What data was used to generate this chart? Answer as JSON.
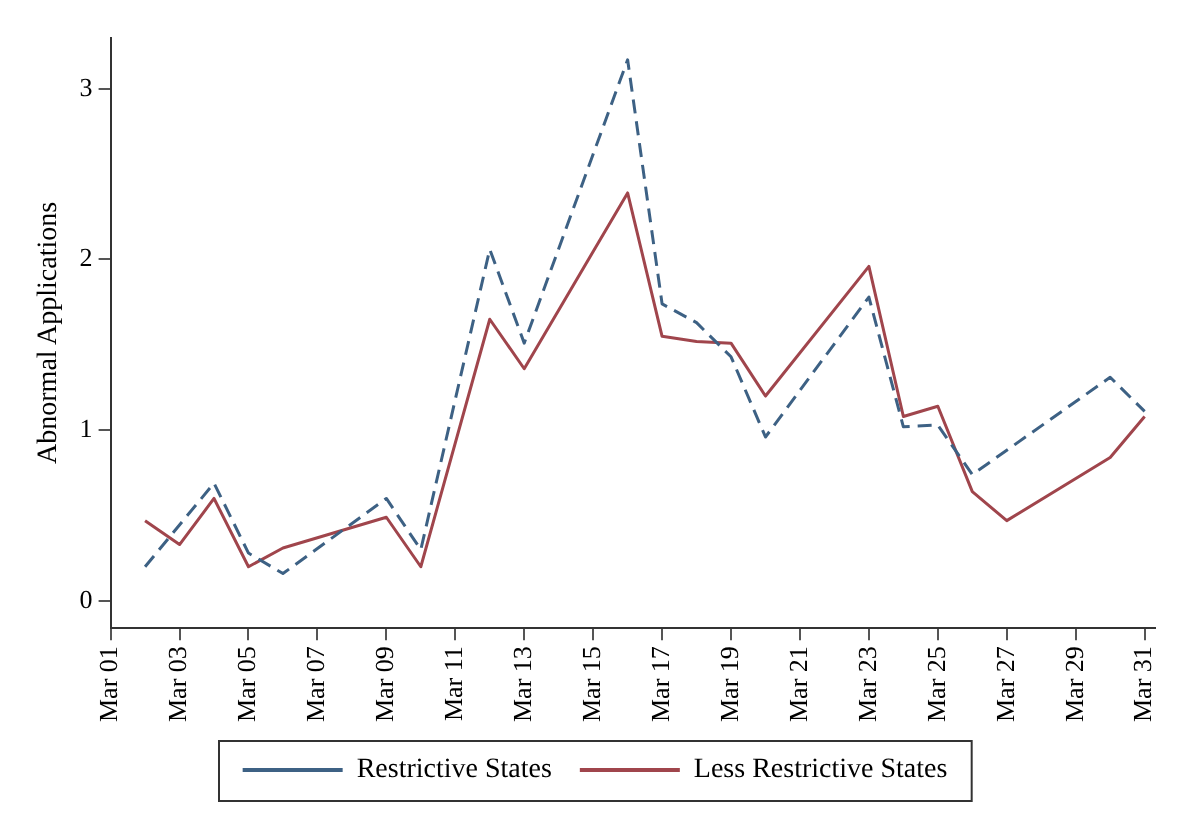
{
  "chart_data": {
    "type": "line",
    "ylabel": "Abnormal Applications",
    "xlim": [
      "--03-01",
      "--03-31T07:00"
    ],
    "xticks": [
      {
        "value": "--03-01",
        "label": "Mar 01"
      },
      {
        "value": "--03-03",
        "label": "Mar 03"
      },
      {
        "value": "--03-05",
        "label": "Mar 05"
      },
      {
        "value": "--03-07",
        "label": "Mar 07"
      },
      {
        "value": "--03-09",
        "label": "Mar 09"
      },
      {
        "value": "--03-11",
        "label": "Mar 11"
      },
      {
        "value": "--03-13",
        "label": "Mar 13"
      },
      {
        "value": "--03-15",
        "label": "Mar 15"
      },
      {
        "value": "--03-17",
        "label": "Mar 17"
      },
      {
        "value": "--03-19",
        "label": "Mar 19"
      },
      {
        "value": "--03-21",
        "label": "Mar 21"
      },
      {
        "value": "--03-23",
        "label": "Mar 23"
      },
      {
        "value": "--03-25",
        "label": "Mar 25"
      },
      {
        "value": "--03-27",
        "label": "Mar 27"
      },
      {
        "value": "--03-29",
        "label": "Mar 29"
      },
      {
        "value": "--03-31",
        "label": "Mar 31"
      }
    ],
    "ylim": [
      -0.16,
      3.3
    ],
    "yticks": [
      0,
      1,
      2,
      3
    ],
    "grid": false,
    "legend": "bottom",
    "marker": "none",
    "series": [
      {
        "name": "Restrictive States",
        "color": "#3d6184",
        "line_style": "dashed",
        "x": [
          "--03-02",
          "--03-04",
          "--03-05",
          "--03-06",
          "--03-09",
          "--03-10",
          "--03-12",
          "--03-13",
          "--03-16",
          "--03-17",
          "--03-18",
          "--03-19",
          "--03-20",
          "--03-23",
          "--03-24",
          "--03-25",
          "--03-26",
          "--03-30",
          "--03-31"
        ],
        "values": [
          0.2,
          0.69,
          0.28,
          0.16,
          0.6,
          0.3,
          2.06,
          1.51,
          3.17,
          1.74,
          1.63,
          1.43,
          0.96,
          1.78,
          1.02,
          1.03,
          0.74,
          1.31,
          1.11
        ]
      },
      {
        "name": "Less Restrictive States",
        "color": "#a0454c",
        "line_style": "solid",
        "x": [
          "--03-02",
          "--03-03",
          "--03-04",
          "--03-05",
          "--03-06",
          "--03-09",
          "--03-10",
          "--03-12",
          "--03-13",
          "--03-16",
          "--03-17",
          "--03-18",
          "--03-19",
          "--03-20",
          "--03-23",
          "--03-24",
          "--03-25",
          "--03-26",
          "--03-27",
          "--03-30",
          "--03-31"
        ],
        "values": [
          0.47,
          0.33,
          0.6,
          0.2,
          0.31,
          0.49,
          0.2,
          1.65,
          1.36,
          2.39,
          1.55,
          1.52,
          1.51,
          1.2,
          1.96,
          1.08,
          1.14,
          0.64,
          0.47,
          0.84,
          1.08
        ]
      }
    ]
  }
}
